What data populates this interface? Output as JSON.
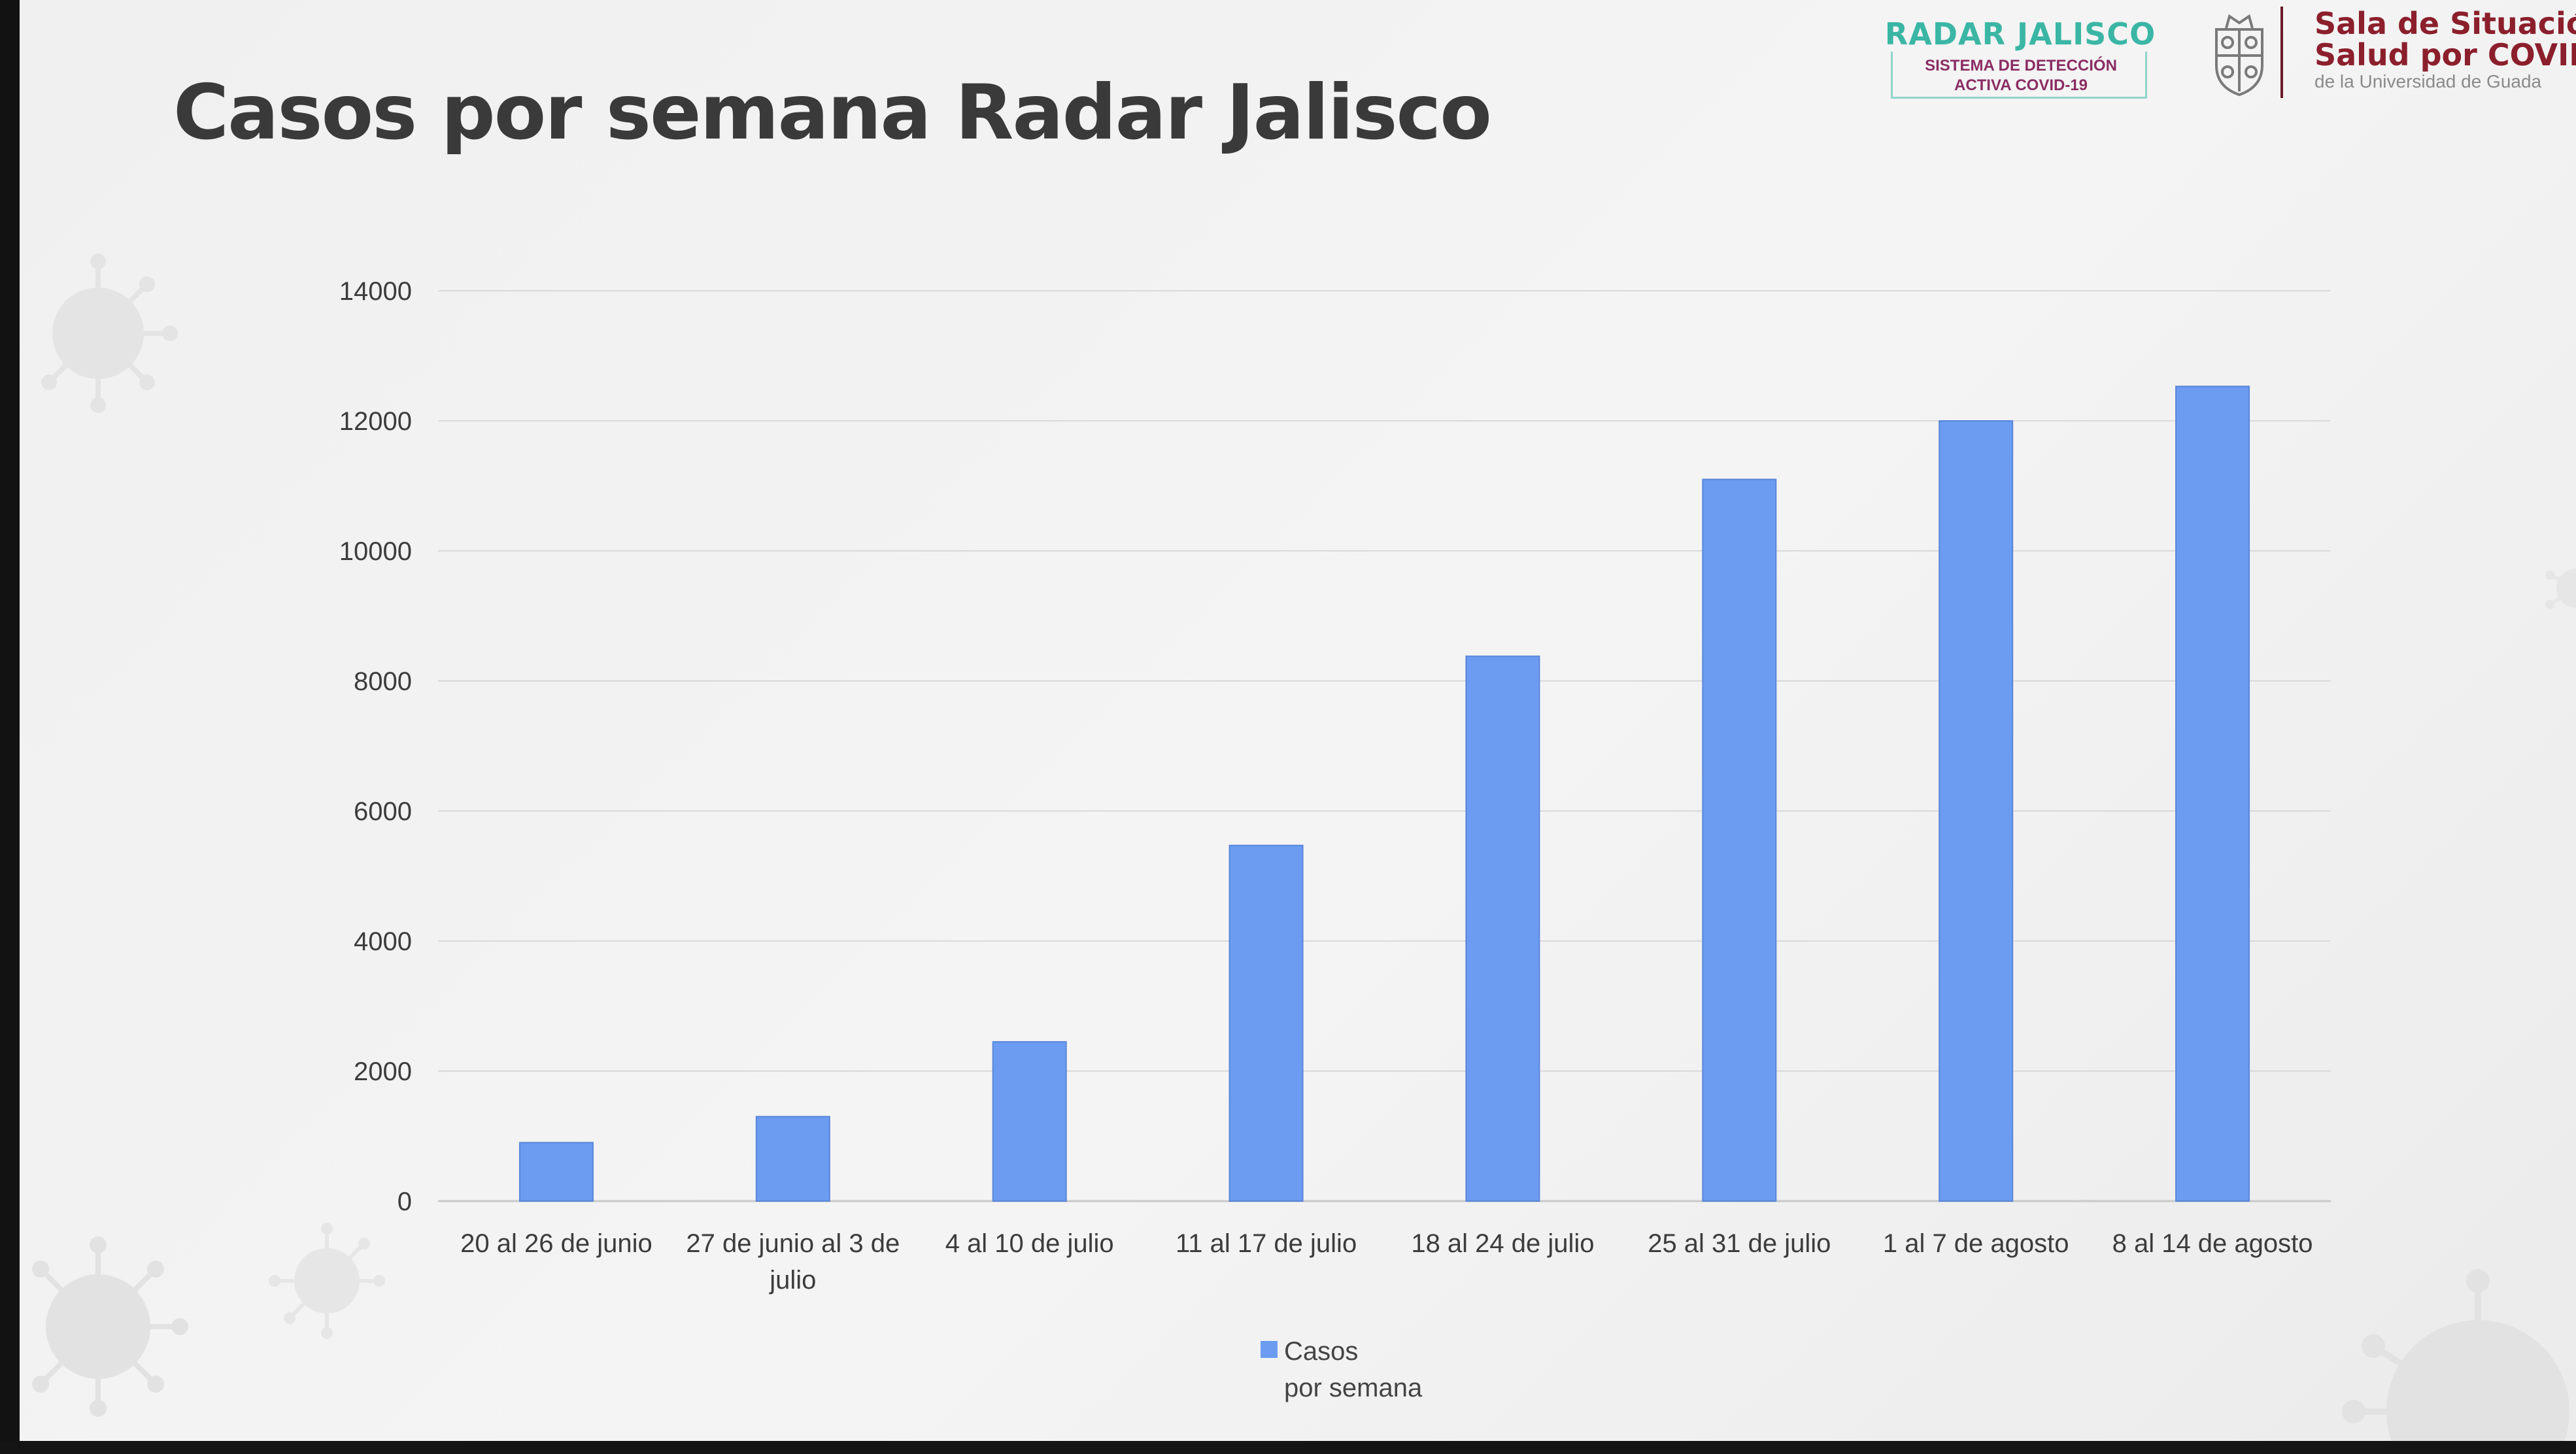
{
  "slide": {
    "title": "Casos por semana Radar Jalisco"
  },
  "logos": {
    "radar": {
      "title": "RADAR JALISCO",
      "subtitle_line1": "SISTEMA DE DETECCIÓN",
      "subtitle_line2": "ACTIVA COVID-19"
    },
    "sala": {
      "line1": "Sala de Situación",
      "line2": "Salud por COVID-",
      "line3": "de la Universidad de Guada"
    }
  },
  "chart_data": {
    "type": "bar",
    "title": "",
    "xlabel": "",
    "ylabel": "",
    "ylim": [
      0,
      14000
    ],
    "yticks": [
      "0",
      "2000",
      "4000",
      "6000",
      "8000",
      "10000",
      "12000",
      "14000"
    ],
    "categories": [
      [
        "20 al 26 de junio"
      ],
      [
        "27 de junio al 3 de",
        "julio"
      ],
      [
        "4 al 10 de julio"
      ],
      [
        "11 al 17 de julio"
      ],
      [
        "18 al 24 de julio"
      ],
      [
        "25 al 31 de julio"
      ],
      [
        "1 al 7 de agosto"
      ],
      [
        "8 al 14 de agosto"
      ]
    ],
    "series": [
      {
        "name": "Casos por semana",
        "legend_lines": [
          "Casos",
          "por semana"
        ],
        "color": "#6b9cf2",
        "values": [
          900,
          1300,
          2450,
          5470,
          8380,
          11100,
          12000,
          12530
        ]
      }
    ],
    "grid": true,
    "legend_position": "bottom"
  }
}
